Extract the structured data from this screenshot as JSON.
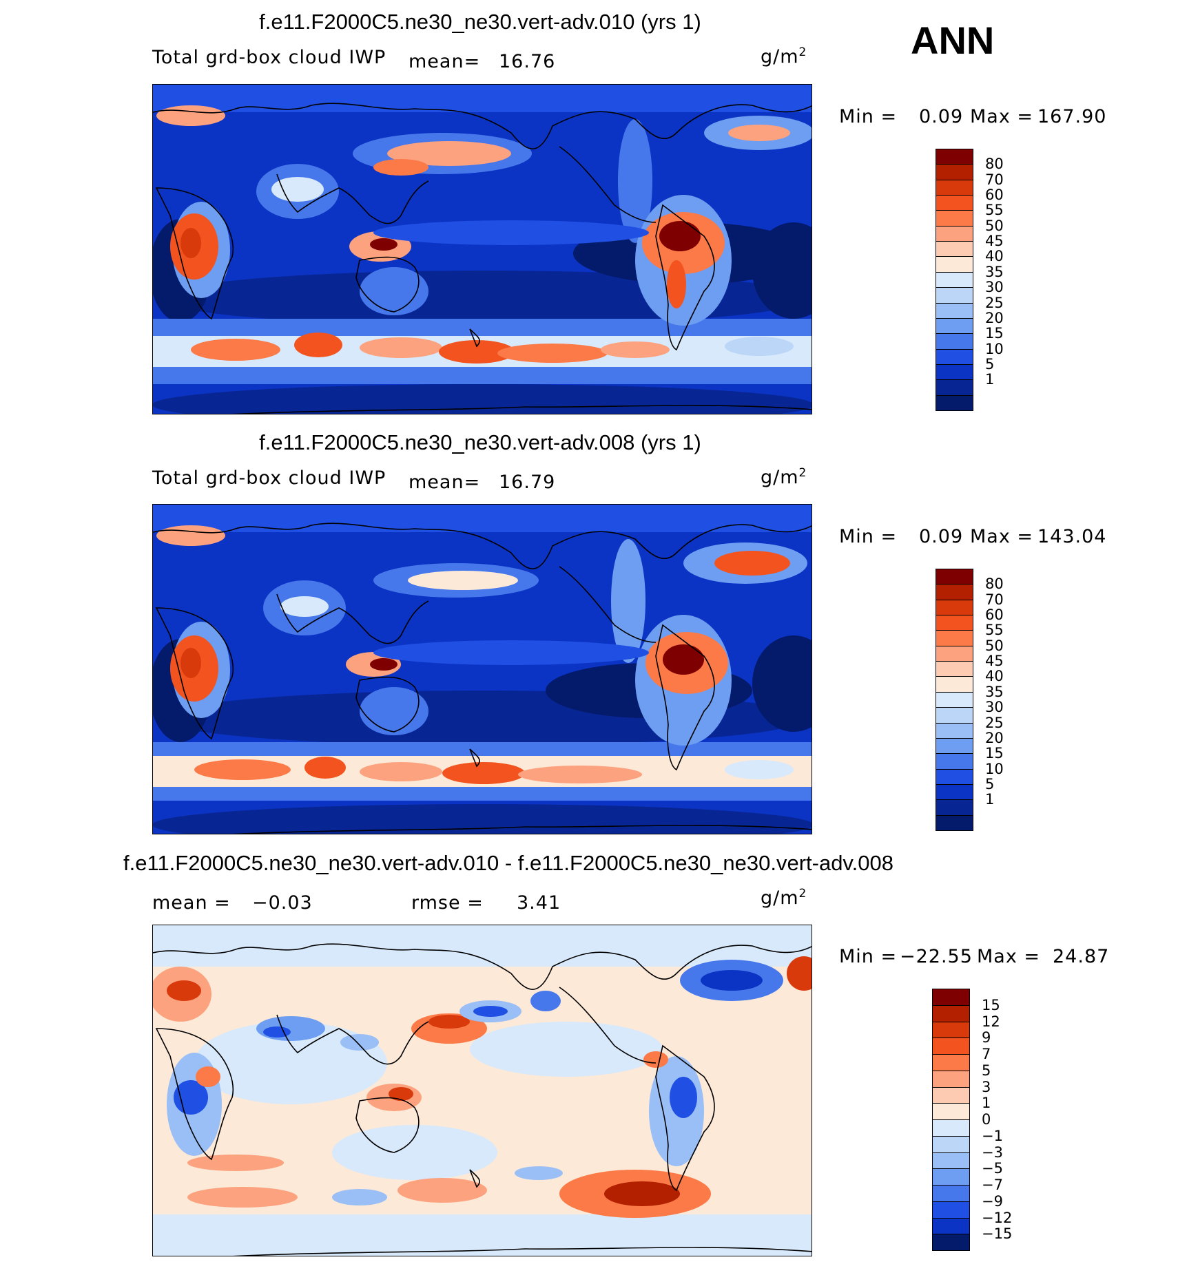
{
  "season": "ANN",
  "panels": [
    {
      "title": "f.e11.F2000C5.ne30_ne30.vert-adv.010 (yrs 1)",
      "variable": "Total grd-box cloud IWP",
      "stat1_label": "mean=",
      "stat1_value": "16.76",
      "stat2_label": "",
      "stat2_value": "",
      "units": "g/m",
      "units_exp": "2",
      "min_label": "Min =",
      "min_value": "0.09",
      "max_label": "Max =",
      "max_value": "167.90",
      "colorbar": {
        "labels": [
          "80",
          "70",
          "60",
          "55",
          "50",
          "45",
          "40",
          "35",
          "30",
          "25",
          "20",
          "15",
          "10",
          "5",
          "1"
        ],
        "colors": [
          "#7f0000",
          "#b22000",
          "#d93a0c",
          "#f2531f",
          "#fb7a48",
          "#fca27e",
          "#fdcbb1",
          "#fde9d7",
          "#d8e9fb",
          "#bcd6f8",
          "#99bff6",
          "#6d9ef1",
          "#4678ec",
          "#1f4fe3",
          "#0c34c4",
          "#082594",
          "#041a6a"
        ]
      }
    },
    {
      "title": "f.e11.F2000C5.ne30_ne30.vert-adv.008 (yrs 1)",
      "variable": "Total grd-box cloud IWP",
      "stat1_label": "mean=",
      "stat1_value": "16.79",
      "stat2_label": "",
      "stat2_value": "",
      "units": "g/m",
      "units_exp": "2",
      "min_label": "Min =",
      "min_value": "0.09",
      "max_label": "Max =",
      "max_value": "143.04",
      "colorbar": {
        "labels": [
          "80",
          "70",
          "60",
          "55",
          "50",
          "45",
          "40",
          "35",
          "30",
          "25",
          "20",
          "15",
          "10",
          "5",
          "1"
        ],
        "colors": [
          "#7f0000",
          "#b22000",
          "#d93a0c",
          "#f2531f",
          "#fb7a48",
          "#fca27e",
          "#fdcbb1",
          "#fde9d7",
          "#d8e9fb",
          "#bcd6f8",
          "#99bff6",
          "#6d9ef1",
          "#4678ec",
          "#1f4fe3",
          "#0c34c4",
          "#082594",
          "#041a6a"
        ]
      }
    },
    {
      "title": "f.e11.F2000C5.ne30_ne30.vert-adv.010 - f.e11.F2000C5.ne30_ne30.vert-adv.008",
      "variable": "",
      "stat1_label": "mean =",
      "stat1_value": "−0.03",
      "stat2_label": "rmse =",
      "stat2_value": "3.41",
      "units": "g/m",
      "units_exp": "2",
      "min_label": "Min =",
      "min_value": "−22.55",
      "max_label": "Max =",
      "max_value": "24.87",
      "colorbar": {
        "labels": [
          "15",
          "12",
          "9",
          "7",
          "5",
          "3",
          "1",
          "0",
          "−1",
          "−3",
          "−5",
          "−7",
          "−9",
          "−12",
          "−15"
        ],
        "colors": [
          "#7f0000",
          "#b22000",
          "#d93a0c",
          "#f2531f",
          "#fb7a48",
          "#fca27e",
          "#fdcbb1",
          "#fde9d7",
          "#d8e9fb",
          "#bcd6f8",
          "#99bff6",
          "#6d9ef1",
          "#4678ec",
          "#1f4fe3",
          "#0c34c4",
          "#041a6a"
        ]
      }
    }
  ],
  "chart_data": [
    {
      "type": "heatmap",
      "title": "f.e11.F2000C5.ne30_ne30.vert-adv.010 (yrs 1)",
      "variable": "Total grd-box cloud IWP",
      "units": "g/m2",
      "mean": 16.76,
      "min": 0.09,
      "max": 167.9,
      "contour_levels": [
        1,
        5,
        10,
        15,
        20,
        25,
        30,
        35,
        40,
        45,
        50,
        55,
        60,
        70,
        80
      ]
    },
    {
      "type": "heatmap",
      "title": "f.e11.F2000C5.ne30_ne30.vert-adv.008 (yrs 1)",
      "variable": "Total grd-box cloud IWP",
      "units": "g/m2",
      "mean": 16.79,
      "min": 0.09,
      "max": 143.04,
      "contour_levels": [
        1,
        5,
        10,
        15,
        20,
        25,
        30,
        35,
        40,
        45,
        50,
        55,
        60,
        70,
        80
      ]
    },
    {
      "type": "heatmap",
      "title": "f.e11.F2000C5.ne30_ne30.vert-adv.010 - f.e11.F2000C5.ne30_ne30.vert-adv.008",
      "units": "g/m2",
      "mean": -0.03,
      "rmse": 3.41,
      "min": -22.55,
      "max": 24.87,
      "contour_levels": [
        -15,
        -12,
        -9,
        -7,
        -5,
        -3,
        -1,
        0,
        1,
        3,
        5,
        7,
        9,
        12,
        15
      ]
    }
  ]
}
